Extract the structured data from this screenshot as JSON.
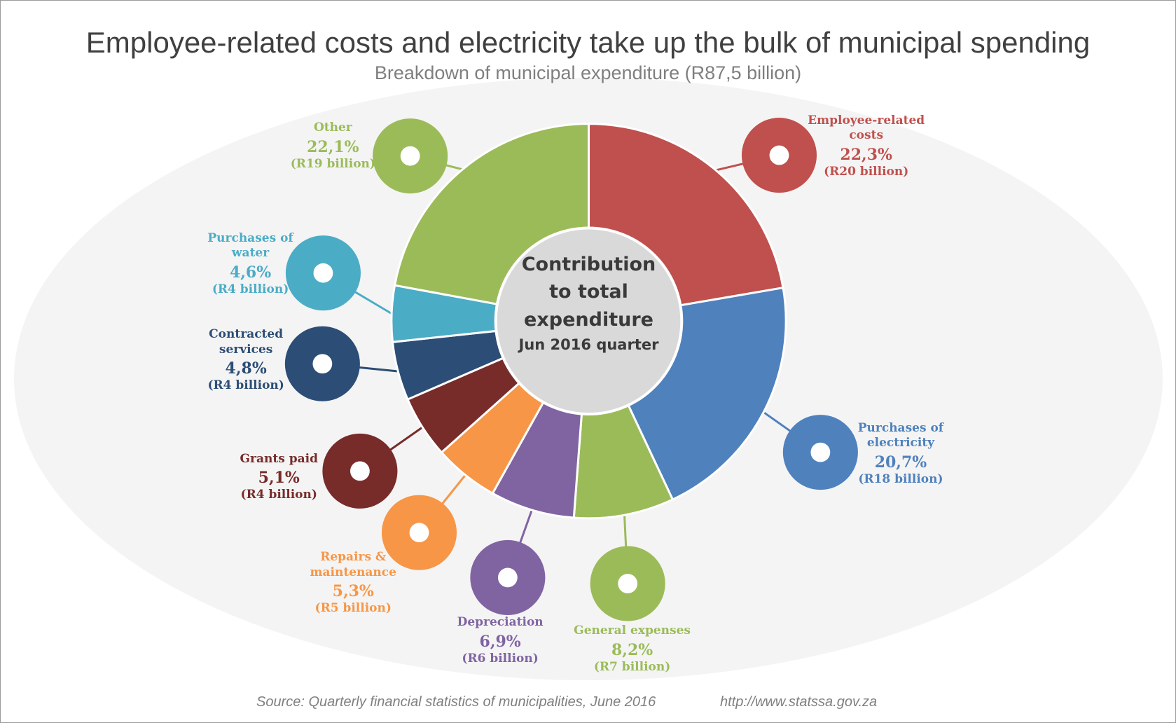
{
  "title": "Employee-related costs and electricity take up the bulk of municipal spending",
  "subtitle": "Breakdown of municipal expenditure (R87,5 billion)",
  "source": "Source: Quarterly financial statistics of municipalities, June 2016",
  "url": "http://www.statssa.gov.za",
  "chart_data": {
    "type": "donut",
    "center_label": "Contribution to total expenditure",
    "center_sublabel": "Jun 2016 quarter",
    "categories": [
      "Employee-related costs",
      "Purchases of electricity",
      "General expenses",
      "Depreciation",
      "Repairs & maintenance",
      "Grants paid",
      "Contracted services",
      "Purchases of water",
      "Other"
    ],
    "values": [
      22.3,
      20.7,
      8.2,
      6.9,
      5.3,
      5.1,
      4.8,
      4.6,
      22.1
    ],
    "value_labels": [
      "22,3%",
      "20,7%",
      "8,2%",
      "6,9%",
      "5,3%",
      "5,1%",
      "4,8%",
      "4,6%",
      "22,1%"
    ],
    "amount_labels": [
      "(R20 billion)",
      "(R18 billion)",
      "(R7 billion)",
      "(R6 billion)",
      "(R5 billion)",
      "(R4 billion)",
      "(R4 billion)",
      "(R4 billion)",
      "(R19 billion)"
    ],
    "colors": [
      "#c0504d",
      "#4f81bd",
      "#9bbb59",
      "#8064a2",
      "#f79646",
      "#772c2a",
      "#2c4d75",
      "#4bacc6",
      "#9bbb59"
    ]
  }
}
